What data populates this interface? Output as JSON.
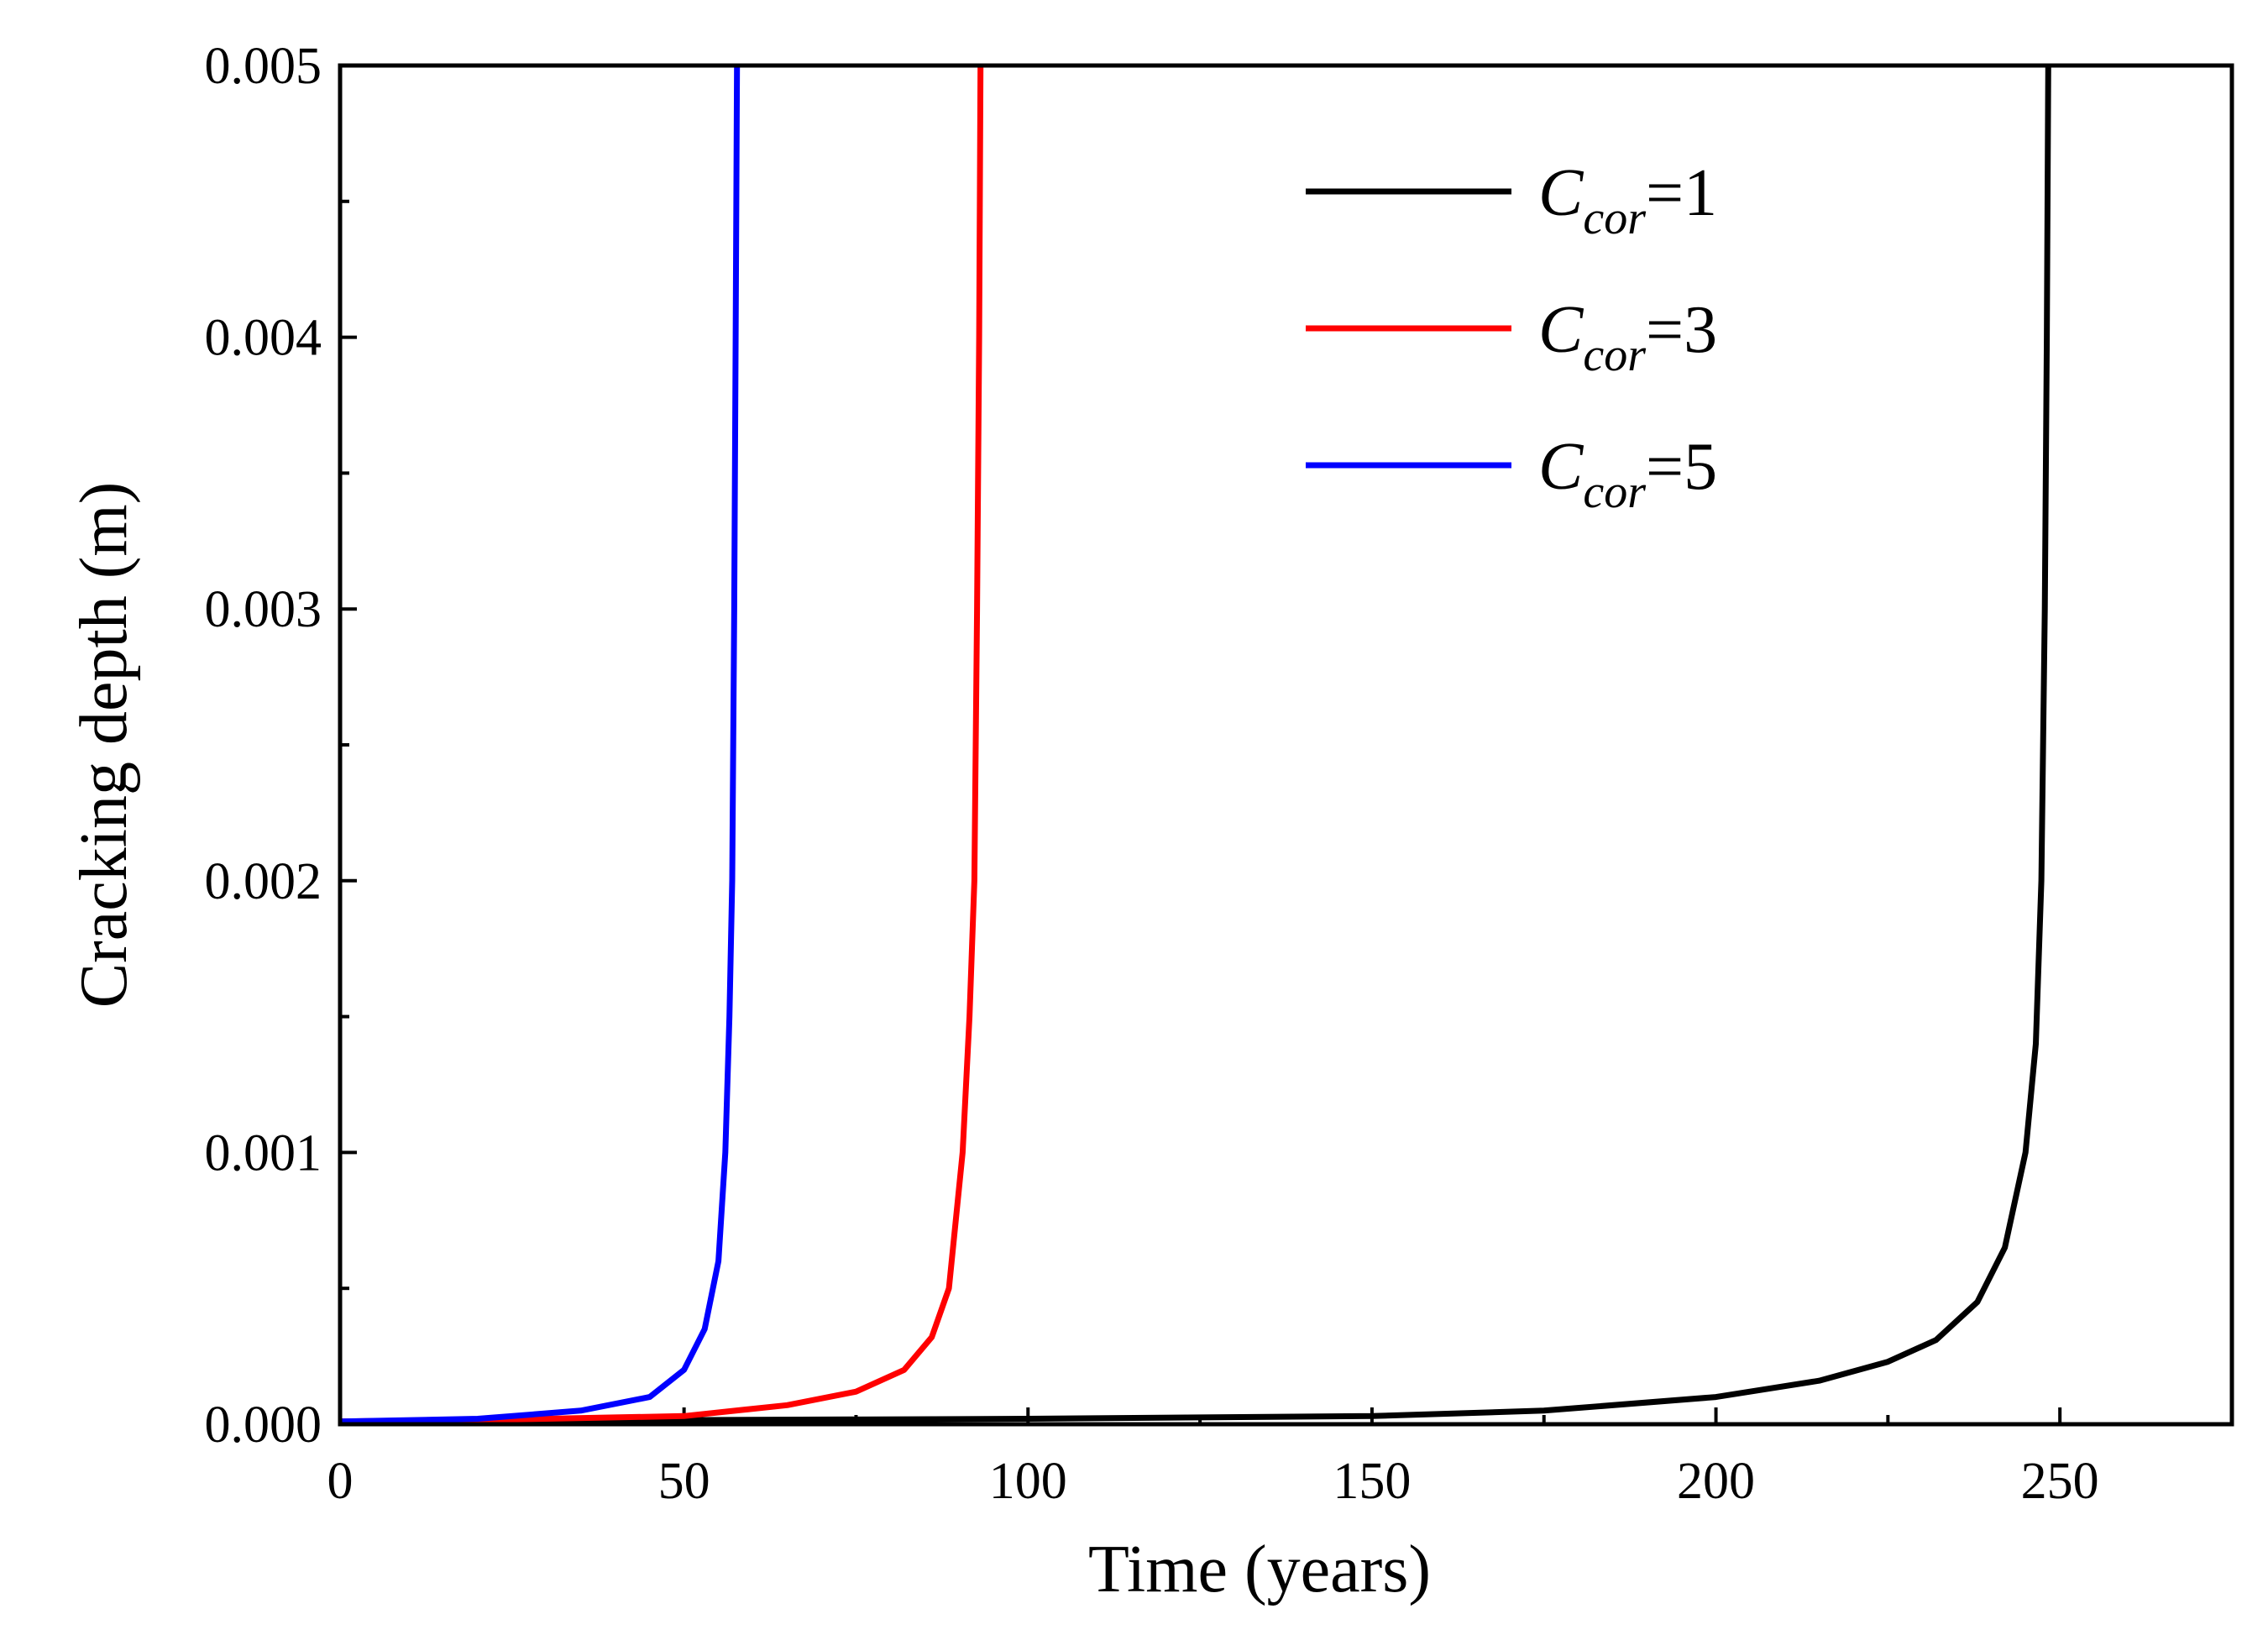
{
  "chart_data": {
    "type": "line",
    "title": "",
    "xlabel": "Time (years)",
    "ylabel": "Cracking depth (m)",
    "xlim": [
      0,
      275
    ],
    "ylim": [
      0,
      0.005
    ],
    "xticks": [
      0,
      50,
      100,
      150,
      200,
      250
    ],
    "xtick_labels": [
      "0",
      "50",
      "100",
      "150",
      "200",
      "250"
    ],
    "yticks": [
      0,
      0.001,
      0.002,
      0.003,
      0.004,
      0.005
    ],
    "ytick_labels": [
      "0.000",
      "0.001",
      "0.002",
      "0.003",
      "0.004",
      "0.005"
    ],
    "grid": false,
    "legend_position": "top-right",
    "series": [
      {
        "name": "Ccor=1",
        "legend_main": "C",
        "legend_sub": "cor",
        "legend_suffix": "=1",
        "color": "#000000",
        "points": [
          [
            0,
            1e-05
          ],
          [
            50,
            1.5e-05
          ],
          [
            100,
            2e-05
          ],
          [
            150,
            3e-05
          ],
          [
            175,
            5e-05
          ],
          [
            200,
            0.0001
          ],
          [
            215,
            0.00016
          ],
          [
            225,
            0.00023
          ],
          [
            232,
            0.00031
          ],
          [
            238,
            0.00045
          ],
          [
            242,
            0.00065
          ],
          [
            245,
            0.001
          ],
          [
            246.5,
            0.0014
          ],
          [
            247.3,
            0.002
          ],
          [
            247.8,
            0.003
          ],
          [
            248.1,
            0.004
          ],
          [
            248.3,
            0.005
          ]
        ]
      },
      {
        "name": "Ccor=3",
        "legend_main": "C",
        "legend_sub": "cor",
        "legend_suffix": "=3",
        "color": "#ff0000",
        "points": [
          [
            0,
            1e-05
          ],
          [
            30,
            2e-05
          ],
          [
            50,
            3e-05
          ],
          [
            65,
            7e-05
          ],
          [
            75,
            0.00012
          ],
          [
            82,
            0.0002
          ],
          [
            86,
            0.00032
          ],
          [
            88.5,
            0.0005
          ],
          [
            90.5,
            0.001
          ],
          [
            91.5,
            0.0015
          ],
          [
            92.2,
            0.002
          ],
          [
            92.6,
            0.003
          ],
          [
            92.9,
            0.004
          ],
          [
            93.1,
            0.005
          ]
        ]
      },
      {
        "name": "Ccor=5",
        "legend_main": "C",
        "legend_sub": "cor",
        "legend_suffix": "=5",
        "color": "#0000ff",
        "points": [
          [
            0,
            1e-05
          ],
          [
            20,
            2e-05
          ],
          [
            35,
            5e-05
          ],
          [
            45,
            0.0001
          ],
          [
            50,
            0.0002
          ],
          [
            53,
            0.00035
          ],
          [
            55,
            0.0006
          ],
          [
            56,
            0.001
          ],
          [
            56.6,
            0.0015
          ],
          [
            57,
            0.002
          ],
          [
            57.3,
            0.003
          ],
          [
            57.5,
            0.004
          ],
          [
            57.7,
            0.005
          ]
        ]
      }
    ]
  }
}
